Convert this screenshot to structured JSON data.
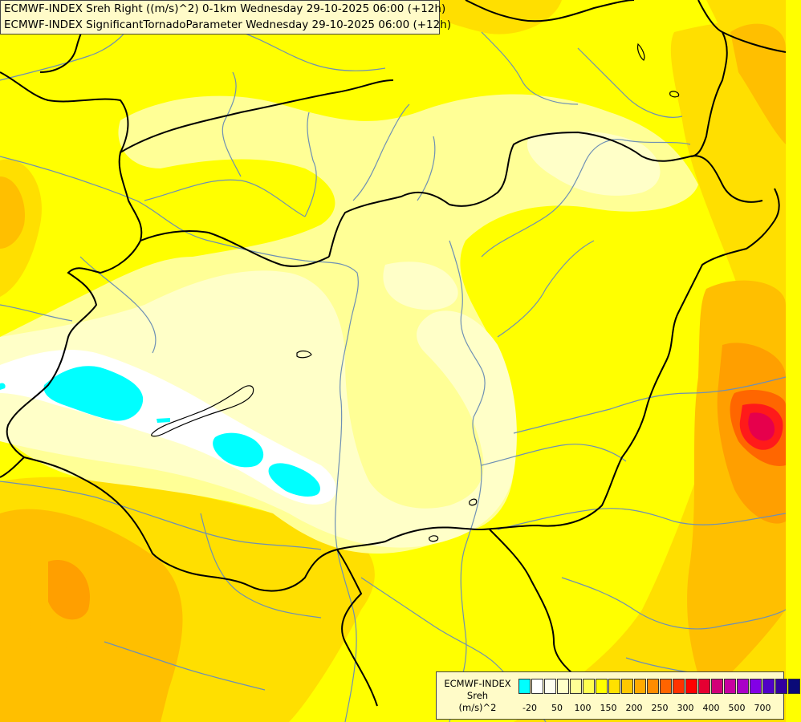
{
  "title": {
    "line1": "ECMWF-INDEX Sreh Right ((m/s)^2) 0-1km Wednesday 29-10-2025 06:00 (+12h)",
    "line2": "ECMWF-INDEX SignificantTornadoParameter Wednesday 29-10-2025 06:00 (+12h)"
  },
  "legend": {
    "line1": "ECMWF-INDEX",
    "line2": "Sreh",
    "line3": "(m/s)^2",
    "colors": [
      "#00ffff",
      "#ffffff",
      "#fffff0",
      "#ffffc8",
      "#ffff96",
      "#ffff50",
      "#ffff00",
      "#ffe100",
      "#ffc800",
      "#ffaa00",
      "#ff8c00",
      "#ff6400",
      "#ff3200",
      "#ff0000",
      "#e60032",
      "#d20078",
      "#c800a0",
      "#aa00c8",
      "#8200e6",
      "#5000c8",
      "#3200a0",
      "#0a0a78"
    ],
    "ticks": [
      "-20",
      "50",
      "100",
      "150",
      "200",
      "250",
      "300",
      "400",
      "500",
      "700"
    ]
  },
  "map": {
    "background": "#ffff00",
    "shading": {
      "orange": "#ffdf00",
      "deep_orange": "#ffbf00",
      "dark_orange": "#ff9f00",
      "red_orange": "#ff6600",
      "red": "#ff1a1a",
      "magenta": "#e6004c",
      "pale": "#ffff96",
      "paler": "#ffffc8",
      "white": "#ffffff",
      "cyan": "#00ffff"
    },
    "river_color": "#6e90b4",
    "border_color": "#000000"
  }
}
